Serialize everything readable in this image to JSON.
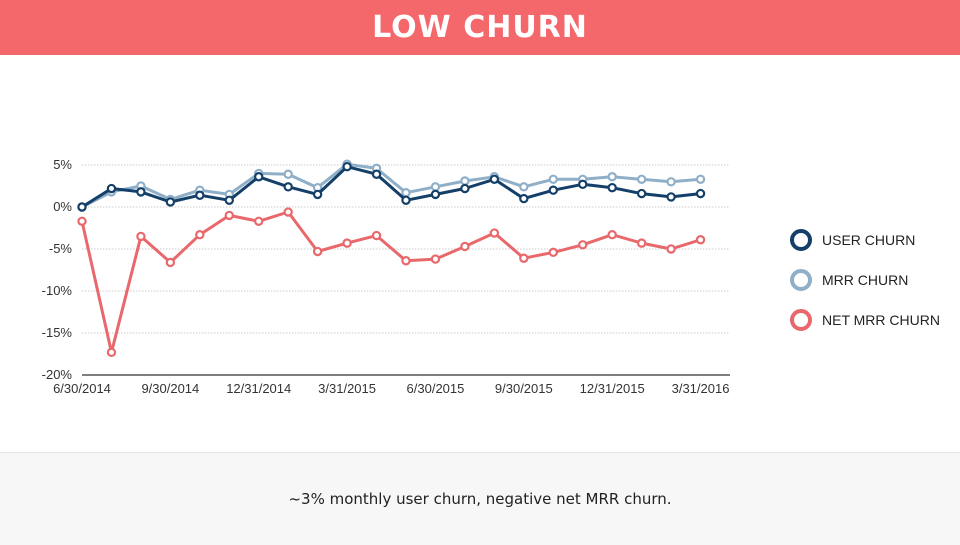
{
  "page": {
    "title": "LOW CHURN",
    "caption": "~3% monthly user churn, negative net MRR churn.",
    "colors": {
      "header": "#f4686b",
      "caption_band": "#f7f7f7"
    }
  },
  "chart_data": {
    "type": "line",
    "title": "",
    "xlabel": "",
    "ylabel": "",
    "x": [
      "6/30/2014",
      "7/31/2014",
      "8/31/2014",
      "9/30/2014",
      "10/31/2014",
      "11/30/2014",
      "12/31/2014",
      "1/31/2015",
      "2/28/2015",
      "3/31/2015",
      "4/30/2015",
      "5/31/2015",
      "6/30/2015",
      "7/31/2015",
      "8/31/2015",
      "9/30/2015",
      "10/31/2015",
      "11/30/2015",
      "12/31/2015",
      "1/31/2016",
      "2/29/2016",
      "3/31/2016",
      "4/30/2016"
    ],
    "x_tick_labels": [
      "6/30/2014",
      "9/30/2014",
      "12/31/2014",
      "3/31/2015",
      "6/30/2015",
      "9/30/2015",
      "12/31/2015",
      "3/31/2016"
    ],
    "x_tick_indices": [
      0,
      3,
      6,
      9,
      12,
      15,
      18,
      21
    ],
    "y_ticks": [
      5,
      0,
      -5,
      -10,
      -15,
      -20
    ],
    "y_tick_labels": [
      "5%",
      "0%",
      "-5%",
      "-10%",
      "-15%",
      "-20%"
    ],
    "ylim": [
      -20,
      5
    ],
    "grid": "horizontal",
    "legend_position": "right",
    "series": [
      {
        "name": "USER CHURN",
        "color": "#143f68",
        "values": [
          0.0,
          2.2,
          1.8,
          0.6,
          1.4,
          0.8,
          3.6,
          2.4,
          1.5,
          4.8,
          3.9,
          0.8,
          1.5,
          2.2,
          3.3,
          1.0,
          2.0,
          2.7,
          2.3,
          1.6,
          1.2,
          1.6,
          null
        ]
      },
      {
        "name": "MRR CHURN",
        "color": "#8fafc8",
        "values": [
          0.0,
          1.8,
          2.5,
          0.9,
          2.0,
          1.5,
          4.0,
          3.9,
          2.3,
          5.1,
          4.6,
          1.7,
          2.4,
          3.1,
          3.6,
          2.4,
          3.3,
          3.3,
          3.6,
          3.3,
          3.0,
          3.3,
          null
        ]
      },
      {
        "name": "NET MRR CHURN",
        "color": "#e8686c",
        "values": [
          -1.7,
          -17.3,
          -3.5,
          -6.6,
          -3.3,
          -1.0,
          -1.7,
          -0.6,
          -5.3,
          -4.3,
          -3.4,
          -6.4,
          -6.2,
          -4.7,
          -3.1,
          -6.1,
          -5.4,
          -4.5,
          -3.3,
          -4.3,
          -5.0,
          -3.9,
          null
        ]
      }
    ]
  }
}
